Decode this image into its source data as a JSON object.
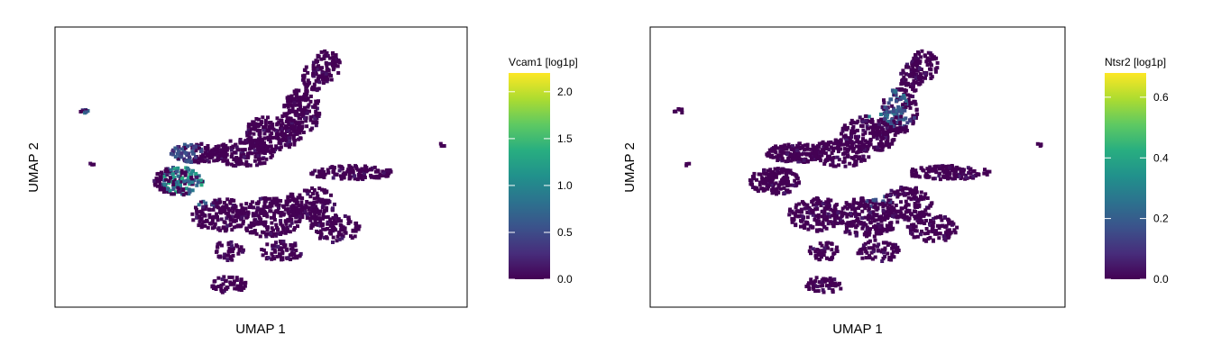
{
  "chart_data": [
    {
      "type": "heatmap",
      "xlabel": "UMAP 1",
      "ylabel": "UMAP 2",
      "colorbar": {
        "title": "Vcam1 [log1p]",
        "range": [
          0.0,
          2.2
        ],
        "ticks": [
          0.0,
          0.5,
          1.0,
          1.5,
          2.0
        ],
        "tick_labels": [
          "0.0",
          "0.5",
          "1.0",
          "1.5",
          "2.0"
        ],
        "colormap": "viridis"
      },
      "hotspots": [
        {
          "u": 0.31,
          "v": 0.45,
          "r": 0.05,
          "value": 1.4
        },
        {
          "u": 0.36,
          "v": 0.4,
          "r": 0.04,
          "value": 1.0
        },
        {
          "u": 0.28,
          "v": 0.55,
          "r": 0.06,
          "value": 0.7
        },
        {
          "u": 0.07,
          "v": 0.7,
          "r": 0.015,
          "value": 0.9
        },
        {
          "u": 0.32,
          "v": 0.58,
          "r": 0.05,
          "value": 0.6
        }
      ]
    },
    {
      "type": "heatmap",
      "xlabel": "UMAP 1",
      "ylabel": "UMAP 2",
      "colorbar": {
        "title": "Ntsr2 [log1p]",
        "range": [
          0.0,
          0.68
        ],
        "ticks": [
          0.0,
          0.2,
          0.4,
          0.6
        ],
        "tick_labels": [
          "0.0",
          "0.2",
          "0.4",
          "0.6"
        ],
        "colormap": "viridis"
      },
      "hotspots": [
        {
          "u": 0.56,
          "v": 0.73,
          "r": 0.06,
          "value": 0.3
        },
        {
          "u": 0.6,
          "v": 0.68,
          "r": 0.04,
          "value": 0.25
        },
        {
          "u": 0.59,
          "v": 0.48,
          "r": 0.01,
          "value": 0.6
        },
        {
          "u": 0.55,
          "v": 0.38,
          "r": 0.03,
          "value": 0.2
        }
      ]
    }
  ]
}
